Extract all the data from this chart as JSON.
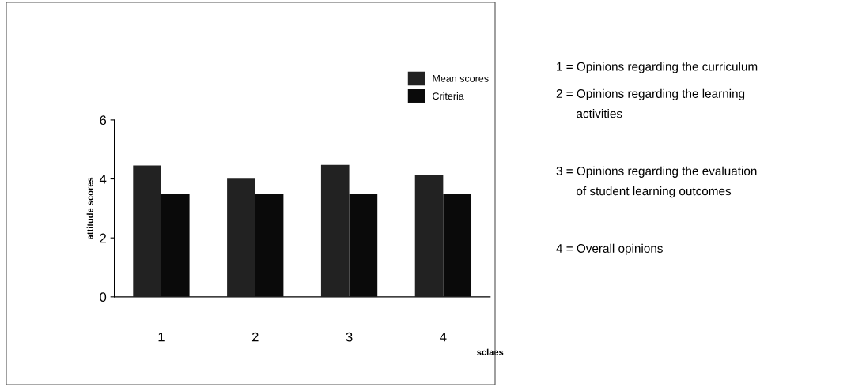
{
  "chart_data": {
    "type": "bar",
    "xlabel": "sclaes",
    "ylabel": "attitude scores",
    "categories": [
      "1",
      "2",
      "3",
      "4"
    ],
    "series": [
      {
        "name": "Mean scores",
        "color": "#222222",
        "values": [
          4.46,
          4.01,
          4.48,
          4.15
        ]
      },
      {
        "name": "Criteria",
        "color": "#0a0a0a",
        "values": [
          3.5,
          3.5,
          3.5,
          3.5
        ]
      }
    ],
    "ylim": [
      0,
      6
    ],
    "yticks": [
      0,
      2,
      4,
      6
    ],
    "grid": false,
    "legend": "top right",
    "annotations": [
      "1 = Opinions regarding the curriculum",
      "2 = Opinions regarding the learning\n      activities",
      "3 = Opinions regarding the evaluation\n      of student learning outcomes",
      "4 = Overall opinions"
    ]
  }
}
